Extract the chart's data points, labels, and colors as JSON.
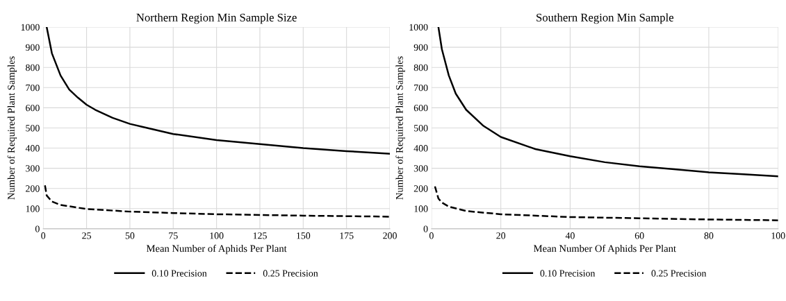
{
  "chart_data": [
    {
      "type": "line",
      "title": "Northern Region Min Sample Size",
      "xlabel": "Mean Number of Aphids Per Plant",
      "ylabel": "Number of Required Plant Samples",
      "xlim": [
        0,
        200
      ],
      "xticks": [
        0,
        25,
        50,
        75,
        100,
        125,
        150,
        175,
        200
      ],
      "ylim": [
        0,
        1000
      ],
      "yticks": [
        0,
        100,
        200,
        300,
        400,
        500,
        600,
        700,
        800,
        900,
        1000
      ],
      "grid": true,
      "legend": "bottom",
      "marker": "none",
      "series": [
        {
          "name": "0.10 Precision",
          "color": "#000000",
          "line_style": "solid",
          "x": [
            2,
            5,
            10,
            15,
            20,
            25,
            30,
            40,
            50,
            60,
            75,
            100,
            125,
            150,
            175,
            200
          ],
          "values": [
            1000,
            870,
            760,
            690,
            650,
            615,
            590,
            550,
            520,
            500,
            470,
            440,
            420,
            400,
            385,
            372
          ]
        },
        {
          "name": "0.25 Precision",
          "color": "#000000",
          "line_style": "dashed",
          "x": [
            1,
            2,
            5,
            10,
            25,
            50,
            75,
            100,
            150,
            200
          ],
          "values": [
            215,
            165,
            135,
            118,
            98,
            85,
            78,
            72,
            65,
            60
          ]
        }
      ]
    },
    {
      "type": "line",
      "title": "Southern Region Min Sample",
      "xlabel": "Mean Number Of Aphids Per Plant",
      "ylabel": "Number of Required Plant Samples",
      "xlim": [
        0,
        100
      ],
      "xticks": [
        0,
        20,
        40,
        60,
        80,
        100
      ],
      "ylim": [
        0,
        1000
      ],
      "yticks": [
        0,
        100,
        200,
        300,
        400,
        500,
        600,
        700,
        800,
        900,
        1000
      ],
      "grid": true,
      "legend": "bottom",
      "marker": "none",
      "series": [
        {
          "name": "0.10 Precision",
          "color": "#000000",
          "line_style": "solid",
          "x": [
            2,
            3,
            5,
            7,
            10,
            15,
            20,
            30,
            40,
            50,
            60,
            70,
            80,
            90,
            100
          ],
          "values": [
            1000,
            890,
            760,
            670,
            590,
            510,
            455,
            395,
            360,
            330,
            310,
            295,
            280,
            270,
            260
          ]
        },
        {
          "name": "0.25 Precision",
          "color": "#000000",
          "line_style": "dashed",
          "x": [
            1,
            2,
            3,
            5,
            10,
            20,
            40,
            60,
            80,
            100
          ],
          "values": [
            210,
            150,
            130,
            110,
            88,
            72,
            58,
            52,
            46,
            42
          ]
        }
      ]
    }
  ]
}
